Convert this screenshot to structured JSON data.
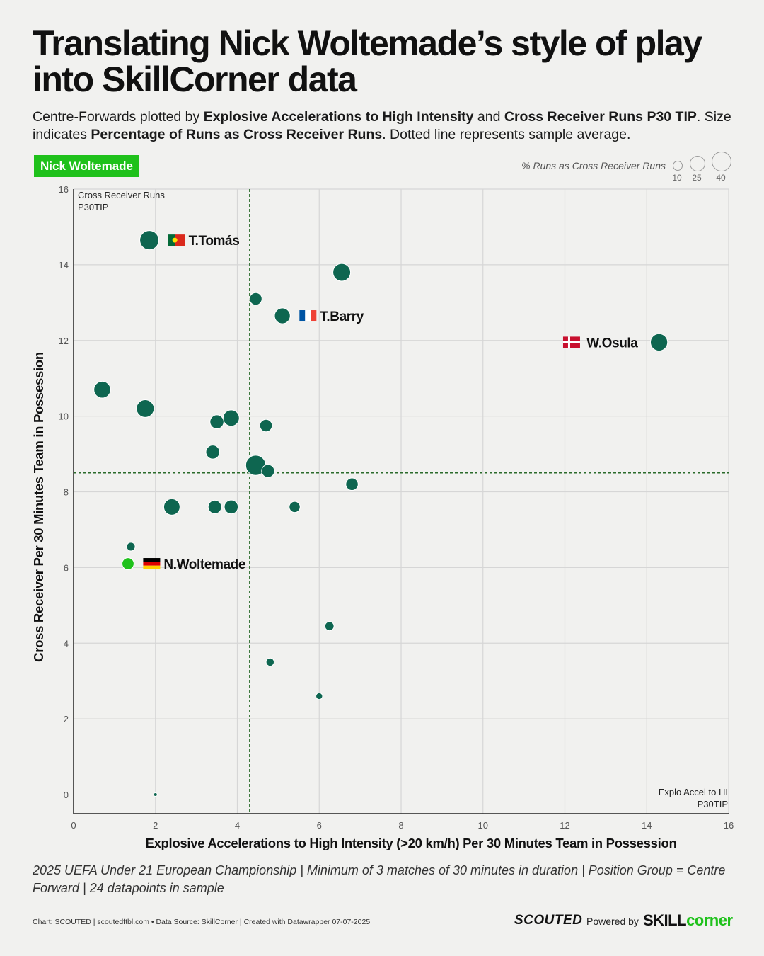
{
  "header": {
    "title": "Translating Nick Woltemade’s style of play into SkillCorner data",
    "subtitle_parts": {
      "p1": "Centre-Forwards plotted by ",
      "b1": "Explosive Accelerations to High Intensity",
      "p2": " and ",
      "b2": "Cross Receiver Runs P30 TIP",
      "p3": ". Size indicates ",
      "b3": "Percentage of Runs as Cross Receiver Runs",
      "p4": ". Dotted line represents sample average."
    },
    "badge": "Nick Woltemade"
  },
  "legend": {
    "title": "% Runs as Cross Receiver Runs",
    "sizes": [
      "10",
      "25",
      "40"
    ]
  },
  "footer": {
    "note": "2025 UEFA Under 21 European Championship | Minimum of 3 matches of 30 minutes in duration | Position Group = Centre Forward | 24 datapoints in sample",
    "credit": "Chart: SCOUTED | scoutedftbl.com • Data Source: SkillCorner | Created with Datawrapper 07-07-2025",
    "brand_scouted": "SCOUTED",
    "powered_by": "Powered by",
    "brand_skill_1": "SKILL",
    "brand_skill_2": "corner"
  },
  "colors": {
    "point": "#0e6650",
    "highlight": "#1fc11b",
    "avg_line": "#2b6b2b",
    "grid": "#d6d6d6"
  },
  "chart_data": {
    "type": "scatter",
    "xlabel": "Explosive Accelerations to High Intensity (>20 km/h) Per 30 Minutes Team in Possession",
    "ylabel": "Cross Receiver Per 30 Minutes Team in Possession",
    "x_corner_label": [
      "Explo Accel to HI",
      "P30TIP"
    ],
    "y_corner_label": [
      "Cross Receiver Runs",
      "P30TIP"
    ],
    "xlim": [
      0,
      16
    ],
    "ylim": [
      0,
      16
    ],
    "xticks": [
      "0",
      "2",
      "4",
      "6",
      "8",
      "10",
      "12",
      "14",
      "16"
    ],
    "yticks": [
      "0",
      "2",
      "4",
      "6",
      "8",
      "10",
      "12",
      "14",
      "16"
    ],
    "x_average": 4.3,
    "y_average": 8.5,
    "points": [
      {
        "x": 1.85,
        "y": 14.65,
        "size": 40,
        "label": "T.Tomás",
        "flag": "pt"
      },
      {
        "x": 6.55,
        "y": 13.8,
        "size": 37,
        "label": "",
        "flag": ""
      },
      {
        "x": 4.45,
        "y": 13.1,
        "size": 26,
        "label": "",
        "flag": ""
      },
      {
        "x": 5.1,
        "y": 12.65,
        "size": 33,
        "label": "T.Barry",
        "flag": "fr"
      },
      {
        "x": 14.3,
        "y": 11.95,
        "size": 36,
        "label": "W.Osula",
        "flag": "dk"
      },
      {
        "x": 0.7,
        "y": 10.7,
        "size": 35,
        "label": "",
        "flag": ""
      },
      {
        "x": 1.75,
        "y": 10.2,
        "size": 37,
        "label": "",
        "flag": ""
      },
      {
        "x": 3.85,
        "y": 9.95,
        "size": 34,
        "label": "",
        "flag": ""
      },
      {
        "x": 3.5,
        "y": 9.85,
        "size": 29,
        "label": "",
        "flag": ""
      },
      {
        "x": 4.7,
        "y": 9.75,
        "size": 26,
        "label": "",
        "flag": ""
      },
      {
        "x": 3.4,
        "y": 9.05,
        "size": 29,
        "label": "",
        "flag": ""
      },
      {
        "x": 4.45,
        "y": 8.7,
        "size": 42,
        "label": "",
        "flag": ""
      },
      {
        "x": 4.75,
        "y": 8.55,
        "size": 27,
        "label": "",
        "flag": ""
      },
      {
        "x": 6.8,
        "y": 8.2,
        "size": 26,
        "label": "",
        "flag": ""
      },
      {
        "x": 2.4,
        "y": 7.6,
        "size": 34,
        "label": "",
        "flag": ""
      },
      {
        "x": 3.45,
        "y": 7.6,
        "size": 28,
        "label": "",
        "flag": ""
      },
      {
        "x": 3.85,
        "y": 7.6,
        "size": 29,
        "label": "",
        "flag": ""
      },
      {
        "x": 5.4,
        "y": 7.6,
        "size": 23,
        "label": "",
        "flag": ""
      },
      {
        "x": 1.4,
        "y": 6.55,
        "size": 18,
        "label": "",
        "flag": ""
      },
      {
        "x": 1.33,
        "y": 6.1,
        "size": 25,
        "label": "N.Woltemade",
        "flag": "de",
        "highlight": true
      },
      {
        "x": 6.25,
        "y": 4.45,
        "size": 19,
        "label": "",
        "flag": ""
      },
      {
        "x": 4.8,
        "y": 3.5,
        "size": 17,
        "label": "",
        "flag": ""
      },
      {
        "x": 6.0,
        "y": 2.6,
        "size": 14,
        "label": "",
        "flag": ""
      },
      {
        "x": 2.0,
        "y": 0.0,
        "size": 5,
        "label": "",
        "flag": ""
      }
    ]
  }
}
